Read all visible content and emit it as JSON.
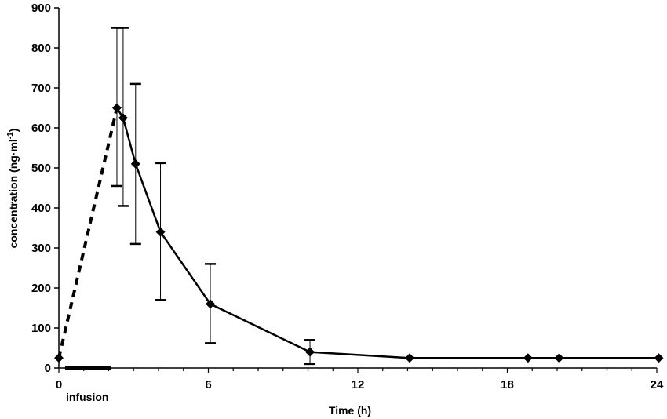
{
  "chart_data": {
    "type": "line",
    "title": "",
    "xlabel": "Time (h)",
    "ylabel": "concentration (ng·ml",
    "ylabel_sup": "-1",
    "ylabel_close": ")",
    "xlim": [
      0,
      24
    ],
    "ylim": [
      0,
      900
    ],
    "x_ticks": [
      0,
      6,
      12,
      18,
      24
    ],
    "y_ticks": [
      0,
      100,
      200,
      300,
      400,
      500,
      600,
      700,
      800,
      900
    ],
    "grid": false,
    "series": [
      {
        "x": [
          0,
          2.33,
          2.58,
          3.08,
          4.08,
          6.08,
          10.08,
          14.08,
          18.83,
          20.08,
          24.08
        ],
        "y": [
          25,
          650,
          625,
          510,
          340,
          160,
          40,
          25,
          25,
          25,
          25
        ],
        "error_low": [
          null,
          455,
          405,
          310,
          170,
          62,
          10,
          null,
          null,
          null,
          null
        ],
        "error_high": [
          null,
          850,
          850,
          710,
          512,
          260,
          70,
          null,
          null,
          null,
          null
        ],
        "marker": "diamond",
        "color": "#000000"
      }
    ],
    "infusion_period": [
      0.25,
      2.08
    ],
    "annotations": [
      "infusion"
    ]
  }
}
